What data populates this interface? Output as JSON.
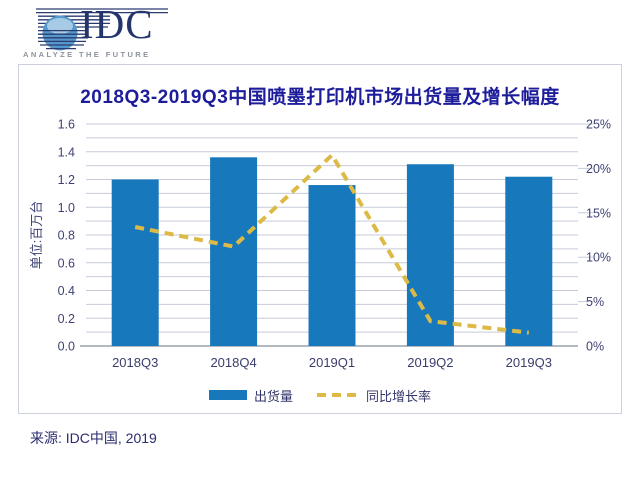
{
  "logo": {
    "name": "IDC",
    "tagline": "ANALYZE THE FUTURE"
  },
  "chart_data": {
    "type": "combo-bar-line",
    "title": "2018Q3-2019Q3中国喷墨打印机市场出货量及增长幅度",
    "categories": [
      "2018Q3",
      "2018Q4",
      "2019Q1",
      "2019Q2",
      "2019Q3"
    ],
    "series": [
      {
        "name": "出货量",
        "type": "bar",
        "axis": "left",
        "color": "#1878BC",
        "values": [
          1.2,
          1.36,
          1.16,
          1.31,
          1.22
        ]
      },
      {
        "name": "同比增长率",
        "type": "line",
        "style": "dashed",
        "axis": "right",
        "color": "#DDBA45",
        "unit": "%",
        "values": [
          13.4,
          11.2,
          21.5,
          2.8,
          1.5
        ]
      }
    ],
    "ylabel_left": "单位:百万台",
    "axis_left": {
      "min": 0,
      "max": 1.6,
      "tick_step": 0.2,
      "grid_step": 0.1,
      "tick_labels": [
        "0.0",
        "0.2",
        "0.4",
        "0.6",
        "0.8",
        "1.0",
        "1.2",
        "1.4",
        "1.6"
      ]
    },
    "axis_right": {
      "min": 0,
      "max": 25,
      "tick_step": 5,
      "tick_labels": [
        "0%",
        "5%",
        "10%",
        "15%",
        "20%",
        "25%"
      ]
    },
    "grid": true,
    "legend_position": "bottom"
  },
  "source": "来源: IDC中国, 2019",
  "colors": {
    "bar": "#1878BC",
    "line": "#DDBA45",
    "grid": "#C6CBDA",
    "axis_line": "#9AA2AE",
    "title": "#1D1D9C",
    "tick_text": "#3F4273",
    "border": "#CDD0DE",
    "logo_navy": "#25356B",
    "tagline_gray": "#8C939D"
  }
}
